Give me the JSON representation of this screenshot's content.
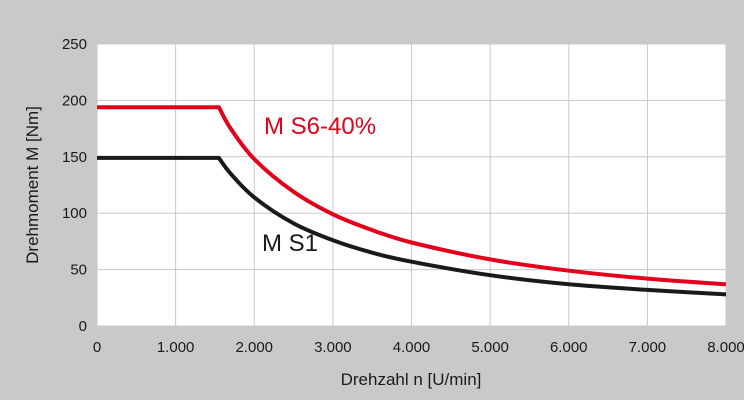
{
  "chart_data": {
    "type": "line",
    "title": "",
    "xlabel": "Drehzahl n [U/min]",
    "ylabel": "Drehmoment M [Nm]",
    "xlim": [
      0,
      8000
    ],
    "ylim": [
      0,
      250
    ],
    "x_ticks": [
      0,
      1000,
      2000,
      3000,
      4000,
      5000,
      6000,
      7000,
      8000
    ],
    "x_tick_labels": [
      "0",
      "1.000",
      "2.000",
      "3.000",
      "4.000",
      "5.000",
      "6.000",
      "7.000",
      "8.000"
    ],
    "y_ticks": [
      0,
      50,
      100,
      150,
      200,
      250
    ],
    "y_tick_labels": [
      "0",
      "50",
      "100",
      "150",
      "200",
      "250"
    ],
    "grid": true,
    "series": [
      {
        "name": "M S6-40%",
        "color": "#e2001a",
        "x": [
          0,
          1550,
          1700,
          2000,
          2500,
          3000,
          3500,
          4000,
          5000,
          6000,
          7000,
          8000
        ],
        "y": [
          194,
          194,
          175,
          148,
          119,
          99,
          85,
          74,
          59,
          49,
          42,
          37
        ]
      },
      {
        "name": "M S1",
        "color": "#1a1a1a",
        "x": [
          0,
          1550,
          1700,
          2000,
          2500,
          3000,
          3500,
          4000,
          5000,
          6000,
          7000,
          8000
        ],
        "y": [
          149,
          149,
          135,
          114,
          91,
          76,
          65,
          57,
          45,
          37,
          32,
          28
        ]
      }
    ]
  }
}
